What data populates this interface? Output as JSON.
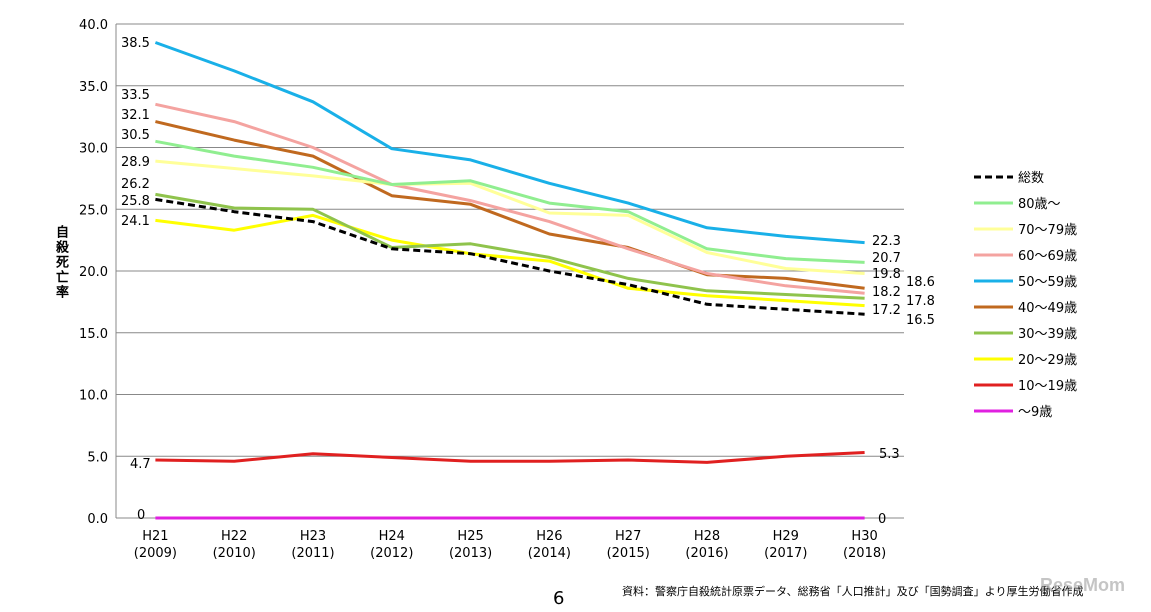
{
  "chart_data": {
    "type": "line",
    "ylabel": "自殺死亡率",
    "ylim": [
      0,
      40
    ],
    "yticks": [
      "0.0",
      "5.0",
      "10.0",
      "15.0",
      "20.0",
      "25.0",
      "30.0",
      "35.0",
      "40.0"
    ],
    "ytick_values": [
      0,
      5,
      10,
      15,
      20,
      25,
      30,
      35,
      40
    ],
    "categories": [
      {
        "top": "H21",
        "bottom": "(2009)"
      },
      {
        "top": "H22",
        "bottom": "(2010)"
      },
      {
        "top": "H23",
        "bottom": "(2011)"
      },
      {
        "top": "H24",
        "bottom": "(2012)"
      },
      {
        "top": "H25",
        "bottom": "(2013)"
      },
      {
        "top": "H26",
        "bottom": "(2014)"
      },
      {
        "top": "H27",
        "bottom": "(2015)"
      },
      {
        "top": "H28",
        "bottom": "(2016)"
      },
      {
        "top": "H29",
        "bottom": "(2017)"
      },
      {
        "top": "H30",
        "bottom": "(2018)"
      }
    ],
    "legend_position": "right",
    "series": [
      {
        "name": "総数",
        "color": "#000000",
        "dashed": true,
        "values": [
          25.8,
          24.8,
          24.0,
          21.8,
          21.4,
          20.0,
          18.9,
          17.3,
          16.9,
          16.5
        ],
        "start_label": "25.8",
        "end_label": "16.5"
      },
      {
        "name": "80歳～",
        "color": "#90ee90",
        "dashed": false,
        "values": [
          30.5,
          29.3,
          28.4,
          27.0,
          27.3,
          25.5,
          24.8,
          21.8,
          21.0,
          20.7
        ],
        "start_label": "30.5",
        "end_label": "20.7"
      },
      {
        "name": "70～79歳",
        "color": "#ffff99",
        "dashed": false,
        "values": [
          28.9,
          28.3,
          27.7,
          27.0,
          27.1,
          24.7,
          24.5,
          21.5,
          20.2,
          19.8
        ],
        "start_label": "28.9",
        "end_label": "19.8"
      },
      {
        "name": "60～69歳",
        "color": "#f4a3a0",
        "dashed": false,
        "values": [
          33.5,
          32.1,
          30.0,
          27.0,
          25.7,
          24.0,
          21.8,
          19.8,
          18.8,
          18.2
        ],
        "start_label": "33.5",
        "end_label": "18.2"
      },
      {
        "name": "50～59歳",
        "color": "#19b0e8",
        "dashed": false,
        "values": [
          38.5,
          36.2,
          33.7,
          29.9,
          29.0,
          27.1,
          25.5,
          23.5,
          22.8,
          22.3
        ],
        "start_label": "38.5",
        "end_label": "22.3"
      },
      {
        "name": "40～49歳",
        "color": "#c0691f",
        "dashed": false,
        "values": [
          32.1,
          30.6,
          29.3,
          26.1,
          25.4,
          23.0,
          21.9,
          19.7,
          19.4,
          18.6
        ],
        "start_label": "32.1",
        "end_label": "18.6"
      },
      {
        "name": "30～39歳",
        "color": "#8fc34c",
        "dashed": false,
        "values": [
          26.2,
          25.1,
          25.0,
          21.9,
          22.2,
          21.1,
          19.4,
          18.4,
          18.1,
          17.8
        ],
        "start_label": "26.2",
        "end_label": "17.8"
      },
      {
        "name": "20～29歳",
        "color": "#ffff00",
        "dashed": false,
        "values": [
          24.1,
          23.3,
          24.5,
          22.5,
          21.4,
          20.8,
          18.6,
          18.0,
          17.6,
          17.2
        ],
        "start_label": "24.1",
        "end_label": "17.2"
      },
      {
        "name": "10～19歳",
        "color": "#e02020",
        "dashed": false,
        "values": [
          4.7,
          4.6,
          5.2,
          4.9,
          4.6,
          4.6,
          4.7,
          4.5,
          5.0,
          5.3
        ],
        "start_label": "4.7",
        "end_label": "5.3"
      },
      {
        "name": "～9歳",
        "color": "#e020e0",
        "dashed": false,
        "values": [
          0,
          0,
          0,
          0,
          0,
          0,
          0,
          0,
          0,
          0
        ],
        "start_label": "0",
        "end_label": "0"
      }
    ]
  },
  "footer": {
    "page_number": "6",
    "source": "資料：警察庁自殺統計原票データ、総務省「人口推計」及び「国勢調査」より厚生労働省作成",
    "watermark": "ReseMom"
  }
}
